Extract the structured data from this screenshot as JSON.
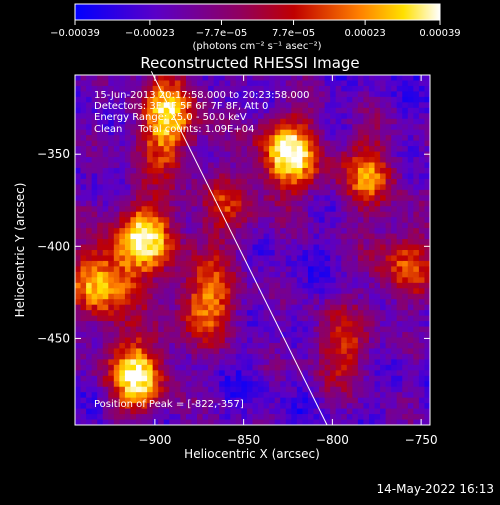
{
  "chart_data": {
    "type": "heatmap",
    "title": "Reconstructed RHESSI Image",
    "xlabel": "Heliocentric X (arcsec)",
    "ylabel": "Heliocentric Y (arcsec)",
    "xlim": [
      -945,
      -745
    ],
    "ylim": [
      -497,
      -307
    ],
    "xticks": [
      {
        "value": -900,
        "label": "−900"
      },
      {
        "value": -850,
        "label": "−850"
      },
      {
        "value": -800,
        "label": "−800"
      },
      {
        "value": -750,
        "label": "−750"
      }
    ],
    "yticks": [
      {
        "value": -350,
        "label": "−350"
      },
      {
        "value": -400,
        "label": "−400"
      },
      {
        "value": -450,
        "label": "−450"
      }
    ],
    "colorbar": {
      "range": [
        -0.00039,
        0.00039
      ],
      "ticks": [
        {
          "value": -0.00039,
          "label": "−0.00039"
        },
        {
          "value": -0.00023,
          "label": "−0.00023"
        },
        {
          "value": -7.7e-05,
          "label": "−7.7e−05"
        },
        {
          "value": 7.7e-05,
          "label": "7.7e−05"
        },
        {
          "value": 0.00023,
          "label": "0.00023"
        },
        {
          "value": 0.00039,
          "label": "0.00039"
        }
      ],
      "unit_text": "(photons cm⁻² s⁻¹ asec⁻²)",
      "colors": [
        "#0000ff",
        "#6a00b8",
        "#b00000",
        "#ff7a00",
        "#ffff60",
        "#ffffff"
      ]
    },
    "limb_line": {
      "x": [
        -902,
        -803
      ],
      "y": [
        -305,
        -497
      ]
    },
    "peak": {
      "x": -822,
      "y": -357
    },
    "hot_regions": [
      {
        "x": -825,
        "y": -350,
        "amp": 1.0
      },
      {
        "x": -905,
        "y": -395,
        "amp": 0.9
      },
      {
        "x": -910,
        "y": -470,
        "amp": 0.95
      },
      {
        "x": -930,
        "y": -420,
        "amp": 0.85
      },
      {
        "x": -870,
        "y": -430,
        "amp": 0.75
      },
      {
        "x": -895,
        "y": -340,
        "amp": 0.6
      },
      {
        "x": -890,
        "y": -320,
        "amp": 0.5
      },
      {
        "x": -780,
        "y": -360,
        "amp": 0.65
      },
      {
        "x": -760,
        "y": -410,
        "amp": 0.6
      },
      {
        "x": -795,
        "y": -455,
        "amp": 0.55
      },
      {
        "x": -860,
        "y": -380,
        "amp": 0.45
      }
    ],
    "annotations": {
      "time": "15-Jun-2013 20:17:58.000 to 20:23:58.000",
      "detectors": "Detectors: 3F 4F 5F 6F 7F 8F, Att 0",
      "energy": "Energy Range: 25.0 - 50.0 keV",
      "method": "Clean     Total counts: 1.09E+04",
      "peak_text": "Position of Peak = [-822,-357]"
    }
  },
  "footer": {
    "timestamp": "14-May-2022 16:13"
  }
}
